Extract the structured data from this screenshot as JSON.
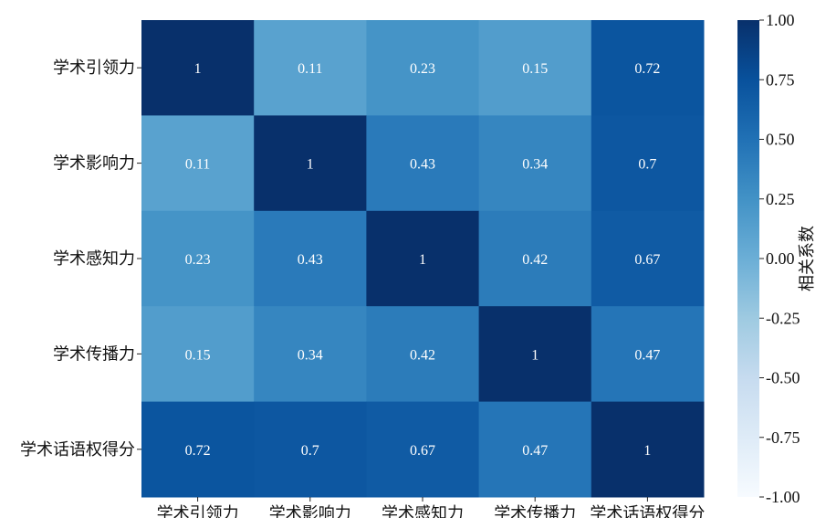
{
  "chart_data": {
    "type": "heatmap",
    "row_labels": [
      "学术引领力",
      "学术影响力",
      "学术感知力",
      "学术传播力",
      "学术话语权得分"
    ],
    "col_labels": [
      "学术引领力",
      "学术影响力",
      "学术感知力",
      "学术传播力",
      "学术话语权得分"
    ],
    "values": [
      [
        1,
        0.11,
        0.23,
        0.15,
        0.72
      ],
      [
        0.11,
        1,
        0.43,
        0.34,
        0.7
      ],
      [
        0.23,
        0.43,
        1,
        0.42,
        0.67
      ],
      [
        0.15,
        0.34,
        0.42,
        1,
        0.47
      ],
      [
        0.72,
        0.7,
        0.67,
        0.47,
        1
      ]
    ],
    "value_labels": [
      [
        "1",
        "0.11",
        "0.23",
        "0.15",
        "0.72"
      ],
      [
        "0.11",
        "1",
        "0.43",
        "0.34",
        "0.7"
      ],
      [
        "0.23",
        "0.43",
        "1",
        "0.42",
        "0.67"
      ],
      [
        "0.15",
        "0.34",
        "0.42",
        "1",
        "0.47"
      ],
      [
        "0.72",
        "0.7",
        "0.67",
        "0.47",
        "1"
      ]
    ],
    "colormap": "Blues",
    "vmin": -1,
    "vmax": 1,
    "colorbar": {
      "label": "相关系数",
      "ticks": [
        1,
        0.75,
        0.5,
        0.25,
        0,
        -0.25,
        -0.5,
        -0.75,
        -1
      ],
      "tick_labels": [
        "1.00",
        "0.75",
        "0.50",
        "0.25",
        "0.00",
        "-0.25",
        "-0.50",
        "-0.75",
        "-1.00"
      ]
    }
  }
}
